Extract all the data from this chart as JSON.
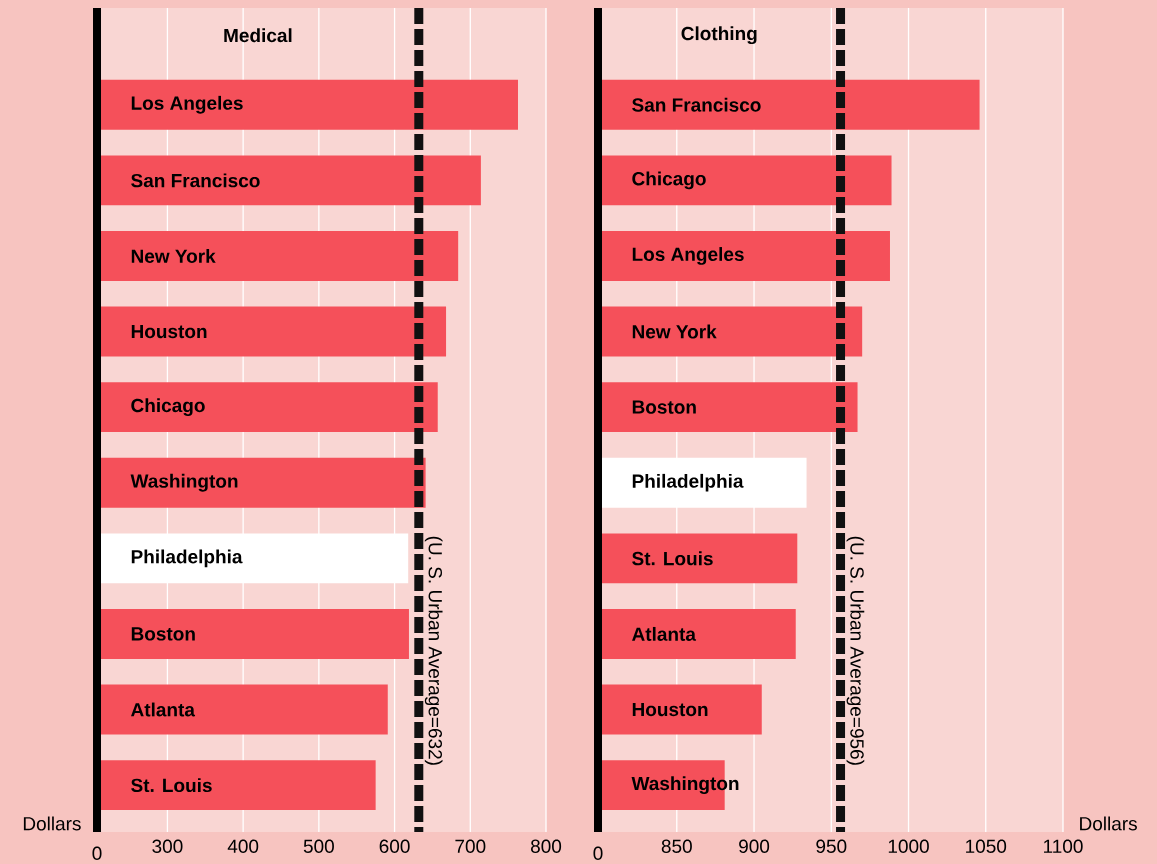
{
  "chart_data": [
    {
      "type": "bar",
      "orientation": "horizontal",
      "title": "Medical",
      "xlabel": "Dollars",
      "categories": [
        "Los Angeles",
        "San Francisco",
        "New York",
        "Houston",
        "Chicago",
        "Washington",
        "Philadelphia",
        "Boston",
        "Atlanta",
        "St. Louis"
      ],
      "values": [
        763,
        714,
        684,
        668,
        657,
        641,
        618,
        619,
        591,
        575
      ],
      "colors": [
        "#f5505a",
        "#f5505a",
        "#f5505a",
        "#f5505a",
        "#f5505a",
        "#f5505a",
        "#ffffff",
        "#f5505a",
        "#f5505a",
        "#f5505a"
      ],
      "xlim": [
        207,
        800
      ],
      "xticks": [
        300,
        400,
        500,
        600,
        700,
        800
      ],
      "grid": "x",
      "ref_lines": [
        {
          "axis": "x",
          "value": 632,
          "label": "(U. S. Urban Average=632)",
          "color": "#111111",
          "line_style": "dashed"
        }
      ],
      "annotations": [
        "0"
      ]
    },
    {
      "type": "bar",
      "orientation": "horizontal",
      "title": "Clothing",
      "xlabel": "Dollars",
      "categories": [
        "San Francisco",
        "Chicago",
        "Los Angeles",
        "New York",
        "Boston",
        "Philadelphia",
        "St. Louis",
        "Atlanta",
        "Houston",
        "Washington"
      ],
      "values": [
        1046,
        989,
        988,
        970,
        967,
        934,
        928,
        927,
        905,
        881
      ],
      "colors": [
        "#f5505a",
        "#f5505a",
        "#f5505a",
        "#f5505a",
        "#f5505a",
        "#ffffff",
        "#f5505a",
        "#f5505a",
        "#f5505a",
        "#f5505a"
      ],
      "xlim": [
        799,
        1100
      ],
      "xticks": [
        850,
        900,
        950,
        1000,
        1050,
        1100
      ],
      "grid": "x",
      "ref_lines": [
        {
          "axis": "x",
          "value": 956,
          "label": "(U. S. Urban Average=956)",
          "color": "#111111",
          "line_style": "dashed"
        }
      ],
      "annotations": [
        "0"
      ]
    }
  ]
}
